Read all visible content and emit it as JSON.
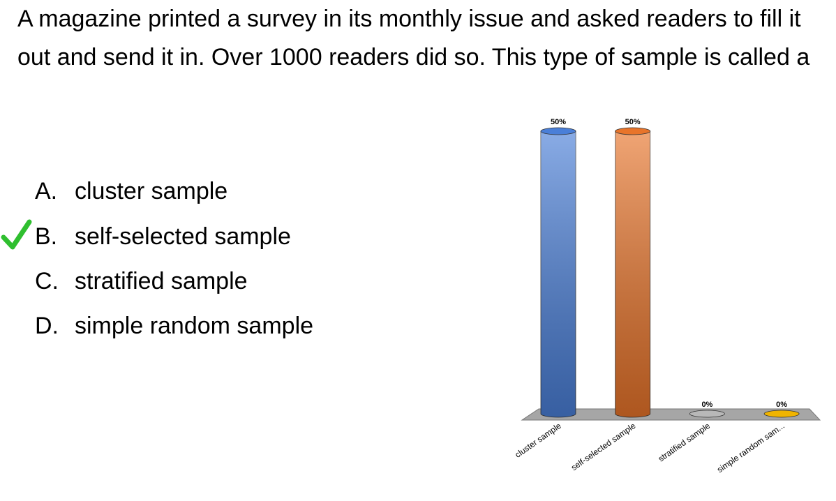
{
  "question": "A magazine printed a survey in its monthly issue and asked readers to fill it out and send it in. Over 1000 readers did so. This type of sample is called a",
  "options": [
    {
      "letter": "A.",
      "text": "cluster sample"
    },
    {
      "letter": "B.",
      "text": "self-selected sample"
    },
    {
      "letter": "C.",
      "text": "stratified sample"
    },
    {
      "letter": "D.",
      "text": "simple random sample"
    }
  ],
  "chart_data": {
    "type": "bar",
    "categories": [
      "cluster sample",
      "self-selected sample",
      "stratified sample",
      "simple random sam..."
    ],
    "values": [
      50,
      50,
      0,
      0
    ],
    "value_labels": [
      "50%",
      "50%",
      "0%",
      "0%"
    ],
    "colors": [
      "#4a7fd8",
      "#e8742a",
      "#b8b8b8",
      "#f0b400"
    ]
  }
}
